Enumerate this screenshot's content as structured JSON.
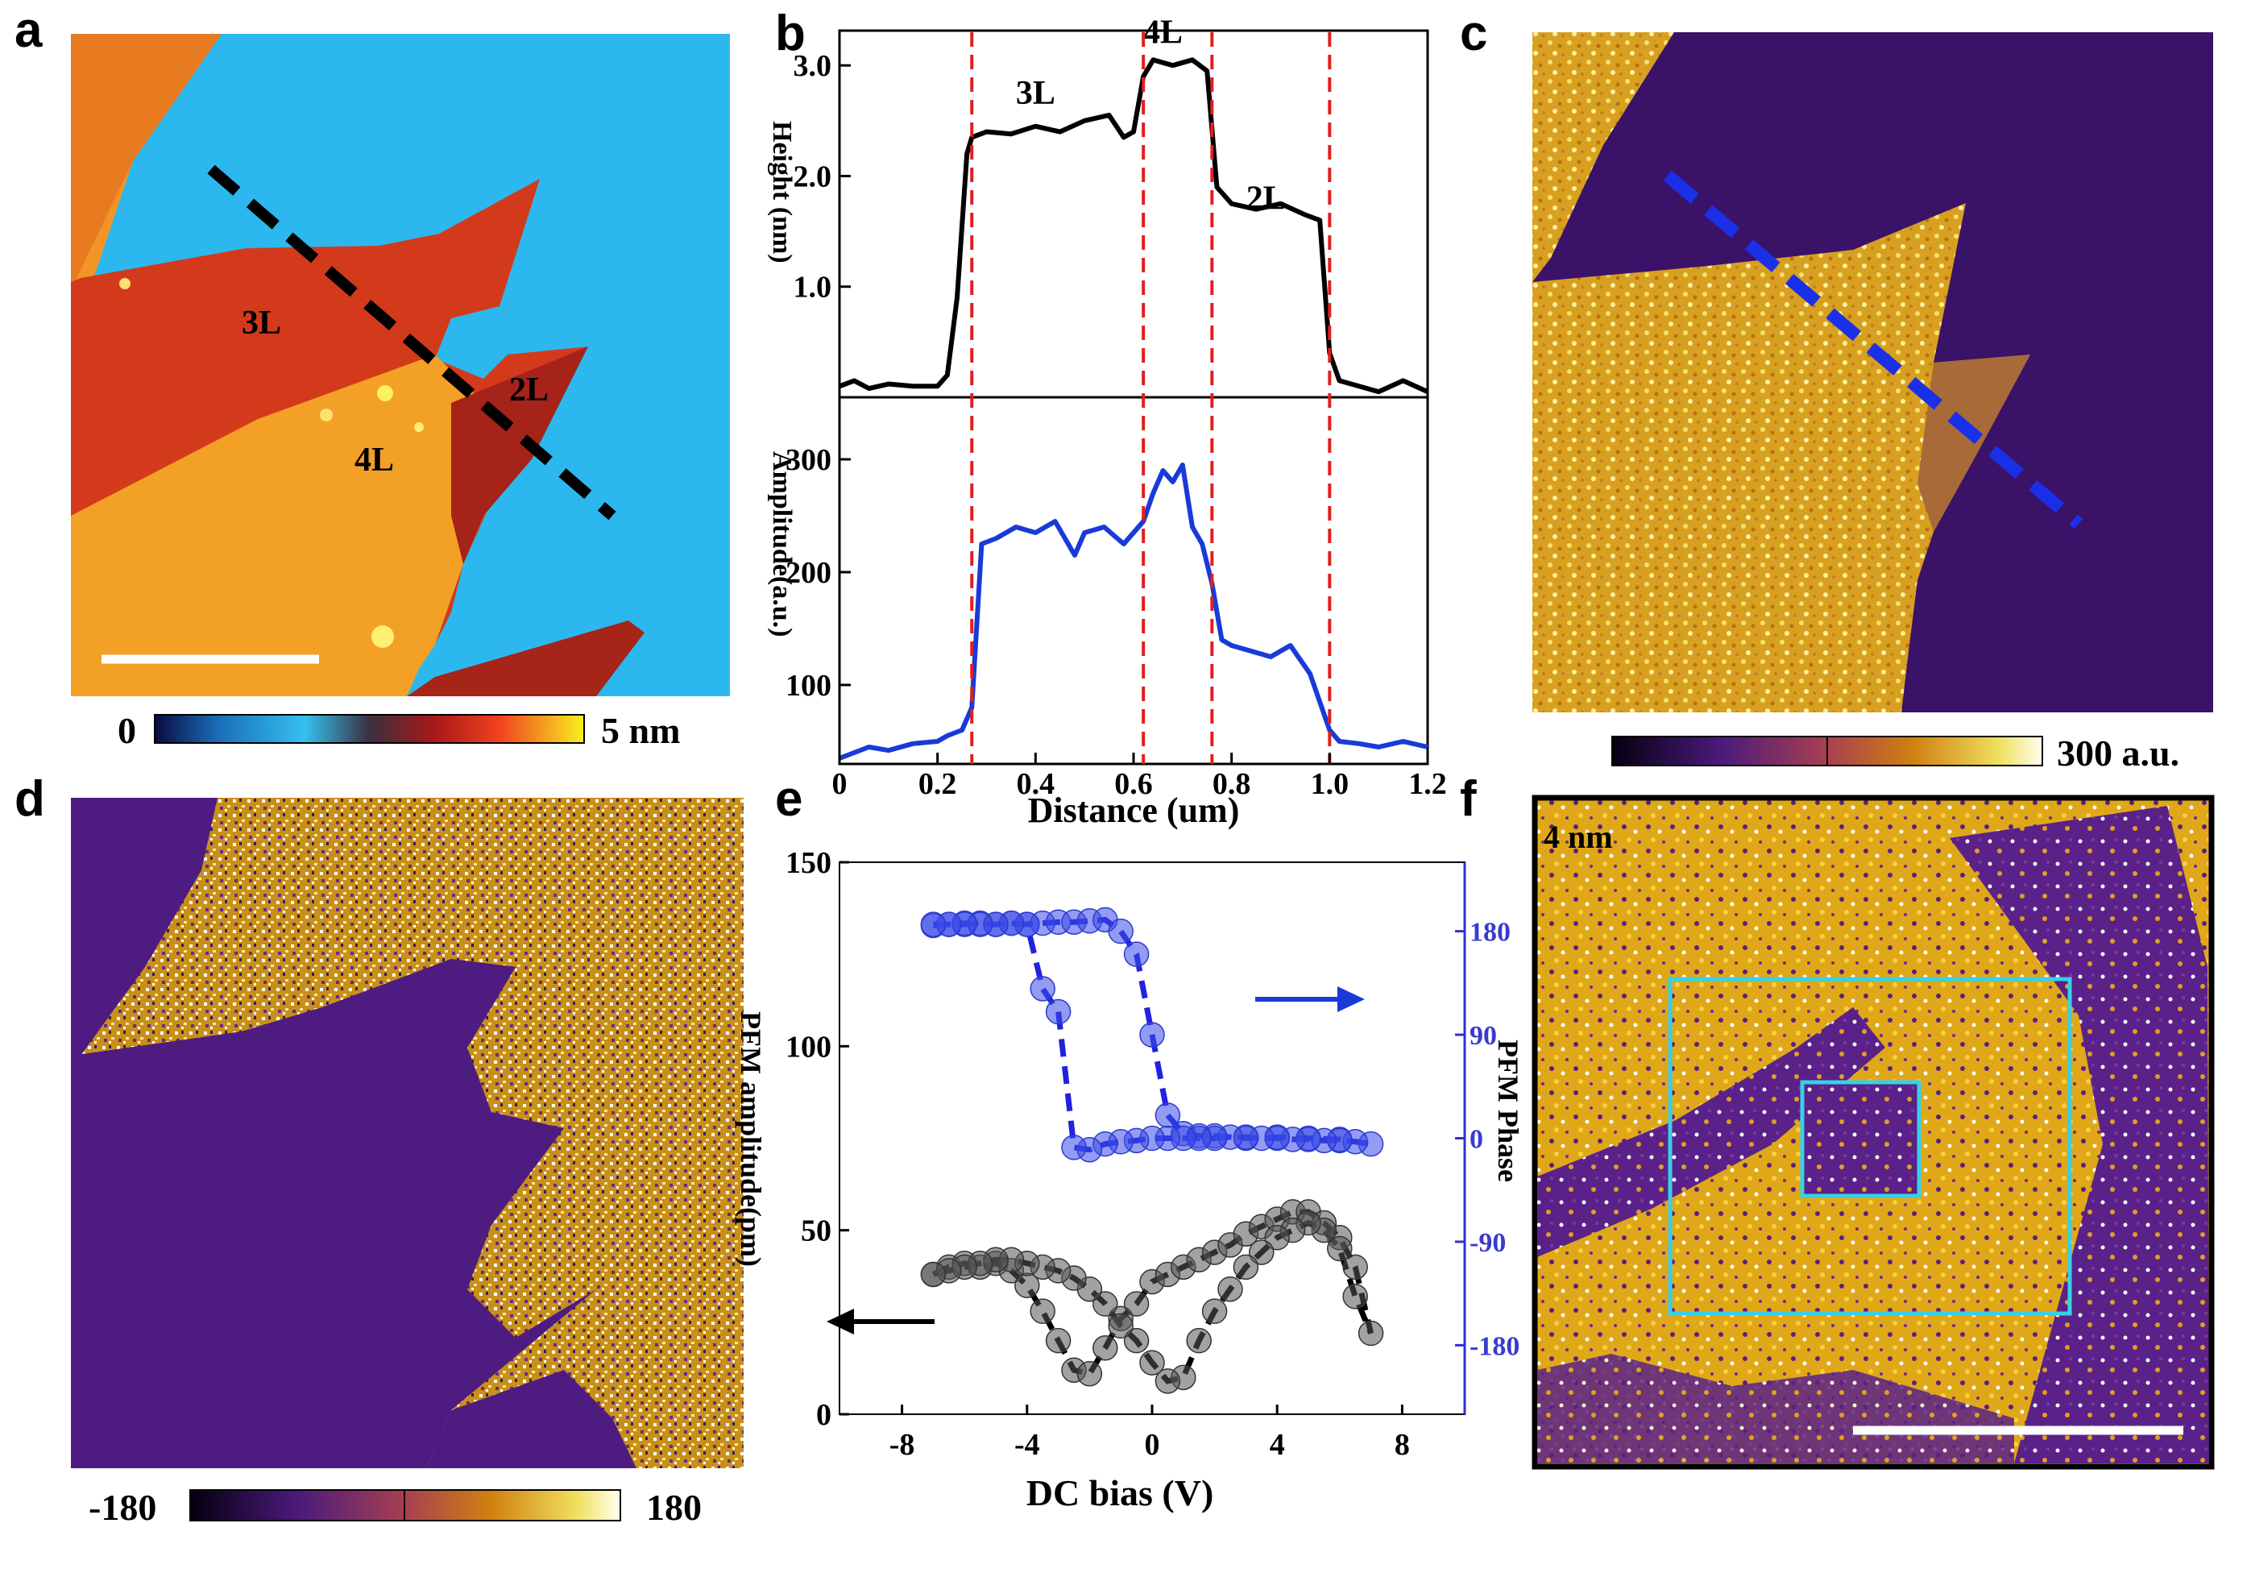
{
  "panels": {
    "a": {
      "label": "a",
      "layers": [
        "3L",
        "2L",
        "4L"
      ],
      "colorbar": {
        "min": "0",
        "max": "5 nm"
      }
    },
    "b": {
      "label": "b"
    },
    "c": {
      "label": "c",
      "colorbar": {
        "max": "300 a.u."
      }
    },
    "d": {
      "label": "d",
      "colorbar": {
        "min": "-180",
        "max": "180"
      }
    },
    "e": {
      "label": "e"
    },
    "f": {
      "label": "f",
      "annotation": "4 nm"
    }
  },
  "colors": {
    "substrate": "#29b6ee",
    "flake3L": "#d2361c",
    "flake4L": "#f39a22",
    "flake2L": "#a82018",
    "phaseDark": "#4a1a7a",
    "phaseBright": "#e0a010",
    "profileHeight": "#000000",
    "profileAmp": "#1a3ad8",
    "marker": "#e02020",
    "box": "#38d0e8"
  },
  "chart_data": [
    {
      "type": "line",
      "panel": "b-top",
      "title": "",
      "xlabel": "Distance (um)",
      "ylabel": "Height (nm)",
      "xlim": [
        0,
        1.2
      ],
      "ylim": [
        0,
        3.3
      ],
      "xticks": [
        "0",
        "0.2",
        "0.4",
        "0.6",
        "0.8",
        "1.0",
        "1.2"
      ],
      "yticks": [
        "1.0",
        "2.0",
        "3.0"
      ],
      "ytick_values": [
        1.0,
        2.0,
        3.0
      ],
      "vlines": [
        0.27,
        0.62,
        0.76,
        1.0
      ],
      "annotations": [
        {
          "text": "3L",
          "x": 0.4,
          "y": 2.65
        },
        {
          "text": "4L",
          "x": 0.66,
          "y": 3.2
        },
        {
          "text": "2L",
          "x": 0.87,
          "y": 1.7
        }
      ],
      "series": [
        {
          "name": "Height",
          "x": [
            0,
            0.03,
            0.06,
            0.1,
            0.15,
            0.2,
            0.22,
            0.24,
            0.26,
            0.27,
            0.3,
            0.35,
            0.4,
            0.45,
            0.5,
            0.55,
            0.58,
            0.6,
            0.62,
            0.64,
            0.68,
            0.72,
            0.75,
            0.77,
            0.8,
            0.85,
            0.9,
            0.95,
            0.98,
            1.0,
            1.02,
            1.06,
            1.1,
            1.15,
            1.2
          ],
          "values": [
            0.1,
            0.15,
            0.08,
            0.12,
            0.1,
            0.1,
            0.2,
            0.9,
            2.2,
            2.35,
            2.4,
            2.38,
            2.45,
            2.4,
            2.5,
            2.55,
            2.35,
            2.4,
            2.9,
            3.05,
            3.0,
            3.05,
            2.95,
            1.9,
            1.75,
            1.7,
            1.75,
            1.65,
            1.6,
            0.4,
            0.15,
            0.1,
            0.05,
            0.15,
            0.05
          ]
        }
      ]
    },
    {
      "type": "line",
      "panel": "b-bottom",
      "title": "",
      "xlabel": "Distance (um)",
      "ylabel": "Amplitude(a.u.)",
      "xlim": [
        0,
        1.2
      ],
      "ylim": [
        30,
        350
      ],
      "yticks": [
        "100",
        "200",
        "300"
      ],
      "ytick_values": [
        100,
        200,
        300
      ],
      "vlines": [
        0.27,
        0.62,
        0.76,
        1.0
      ],
      "series": [
        {
          "name": "Amplitude",
          "x": [
            0,
            0.03,
            0.06,
            0.1,
            0.15,
            0.2,
            0.22,
            0.25,
            0.27,
            0.29,
            0.32,
            0.36,
            0.4,
            0.44,
            0.48,
            0.5,
            0.54,
            0.58,
            0.6,
            0.62,
            0.64,
            0.66,
            0.68,
            0.7,
            0.72,
            0.74,
            0.76,
            0.78,
            0.8,
            0.84,
            0.88,
            0.92,
            0.96,
            1.0,
            1.02,
            1.06,
            1.1,
            1.15,
            1.2
          ],
          "values": [
            35,
            40,
            45,
            42,
            48,
            50,
            55,
            60,
            80,
            225,
            230,
            240,
            235,
            245,
            215,
            235,
            240,
            225,
            235,
            245,
            270,
            290,
            280,
            295,
            240,
            225,
            190,
            140,
            135,
            130,
            125,
            135,
            110,
            60,
            50,
            48,
            45,
            50,
            45
          ]
        }
      ]
    },
    {
      "type": "scatter",
      "panel": "e",
      "title": "",
      "xlabel": "DC bias (V)",
      "ylabel": "PFM amplitude(pm)",
      "y2label": "PFM Phase",
      "xlim": [
        -10,
        10
      ],
      "ylim": [
        0,
        150
      ],
      "y2lim": [
        -240,
        240
      ],
      "xticks": [
        "-8",
        "-4",
        "0",
        "4",
        "8"
      ],
      "xtick_values": [
        -8,
        -4,
        0,
        4,
        8
      ],
      "yticks": [
        "0",
        "50",
        "100",
        "150"
      ],
      "ytick_values": [
        0,
        50,
        100,
        150
      ],
      "y2ticks": [
        "-180",
        "-90",
        "0",
        "90",
        "180"
      ],
      "y2tick_values": [
        -180,
        -90,
        0,
        90,
        180
      ],
      "series": [
        {
          "name": "PFM amplitude",
          "axis": "left",
          "x": [
            -7,
            -6.5,
            -6,
            -5.5,
            -5,
            -4.5,
            -4,
            -3.5,
            -3,
            -2.5,
            -2,
            -1.5,
            -1,
            -0.5,
            0,
            0.5,
            1,
            1.5,
            2,
            2.5,
            3,
            3.5,
            4,
            4.5,
            5,
            5.5,
            6,
            6.5,
            7,
            6.5,
            6,
            5.5,
            5,
            4.5,
            4,
            3.5,
            3,
            2.5,
            2,
            1.5,
            1,
            0.5,
            0,
            -0.5,
            -1,
            -1.5,
            -2,
            -2.5,
            -3,
            -3.5,
            -4,
            -4.5,
            -5,
            -5.5,
            -6,
            -6.5,
            -7
          ],
          "values": [
            38,
            40,
            41,
            40,
            41,
            39,
            35,
            28,
            20,
            12,
            11,
            18,
            26,
            30,
            36,
            38,
            40,
            42,
            44,
            46,
            49,
            51,
            53,
            55,
            55,
            52,
            48,
            40,
            22,
            32,
            45,
            50,
            52,
            50,
            48,
            44,
            40,
            34,
            28,
            20,
            10,
            9,
            14,
            20,
            24,
            30,
            34,
            37,
            39,
            40,
            41,
            42,
            42,
            41,
            40,
            39,
            38
          ]
        },
        {
          "name": "PFM Phase",
          "axis": "right",
          "x": [
            -7,
            -6.5,
            -6,
            -5.5,
            -5,
            -4.5,
            -4,
            -3.5,
            -3,
            -2.5,
            -2,
            -1.5,
            -1,
            -0.5,
            0,
            0.5,
            1,
            1.5,
            2,
            3,
            4,
            5,
            6,
            7,
            6.5,
            6,
            5.5,
            5,
            4.5,
            4,
            3.5,
            3,
            2.5,
            2,
            1.5,
            1,
            0.5,
            0,
            -0.5,
            -1,
            -1.5,
            -2,
            -2.5,
            -3,
            -3.5,
            -4,
            -4.5,
            -5,
            -5.5,
            -6,
            -6.5,
            -7
          ],
          "values": [
            185,
            186,
            186,
            187,
            186,
            187,
            186,
            187,
            188,
            188,
            189,
            190,
            180,
            160,
            90,
            20,
            4,
            2,
            2,
            0,
            1,
            0,
            -1,
            -5,
            -3,
            -2,
            -2,
            -1,
            -1,
            0,
            0,
            1,
            1,
            0,
            0,
            0,
            0,
            0,
            -2,
            -3,
            -5,
            -10,
            -8,
            110,
            130,
            186,
            187,
            186,
            186,
            187,
            186,
            186
          ]
        }
      ],
      "fit_colors": {
        "left": "#000000",
        "right": "#2222dd"
      }
    }
  ]
}
